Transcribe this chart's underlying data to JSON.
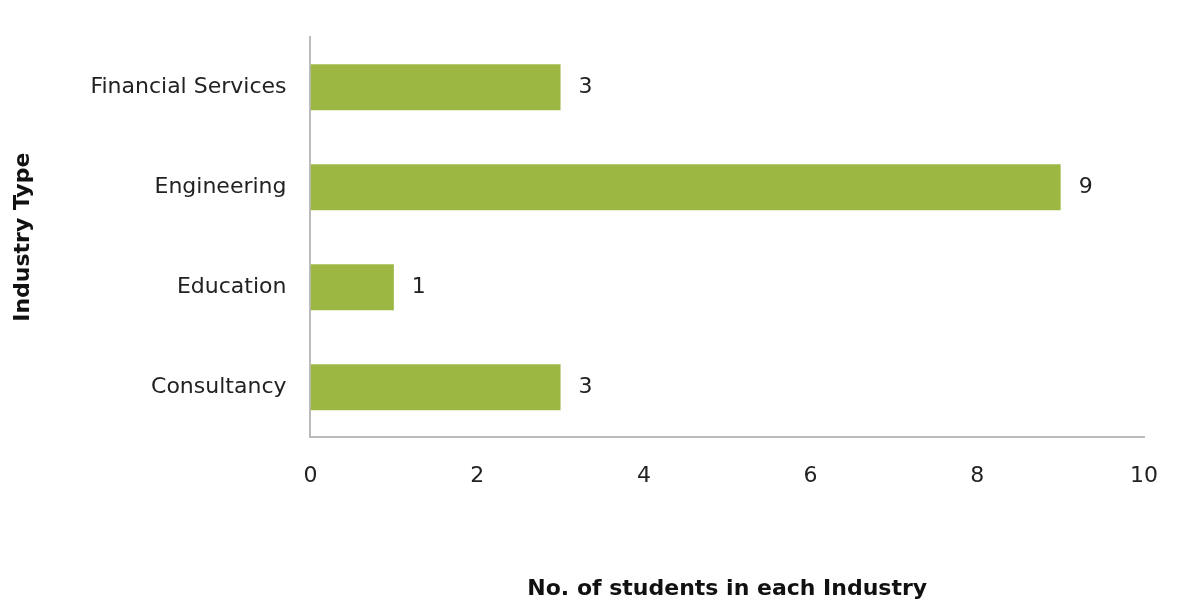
{
  "chart_data": {
    "type": "bar",
    "orientation": "horizontal",
    "xlabel": "No. of students in each Industry",
    "ylabel": "Industry Type",
    "categories": [
      "Financial Services",
      "Engineering",
      "Education",
      "Consultancy"
    ],
    "values": [
      3,
      9,
      1,
      3
    ],
    "color": "#9cb843",
    "xlim": [
      0,
      10
    ],
    "xticks": [
      0,
      2,
      4,
      6,
      8,
      10
    ],
    "grid": false,
    "legend": false,
    "data_labels": true
  }
}
